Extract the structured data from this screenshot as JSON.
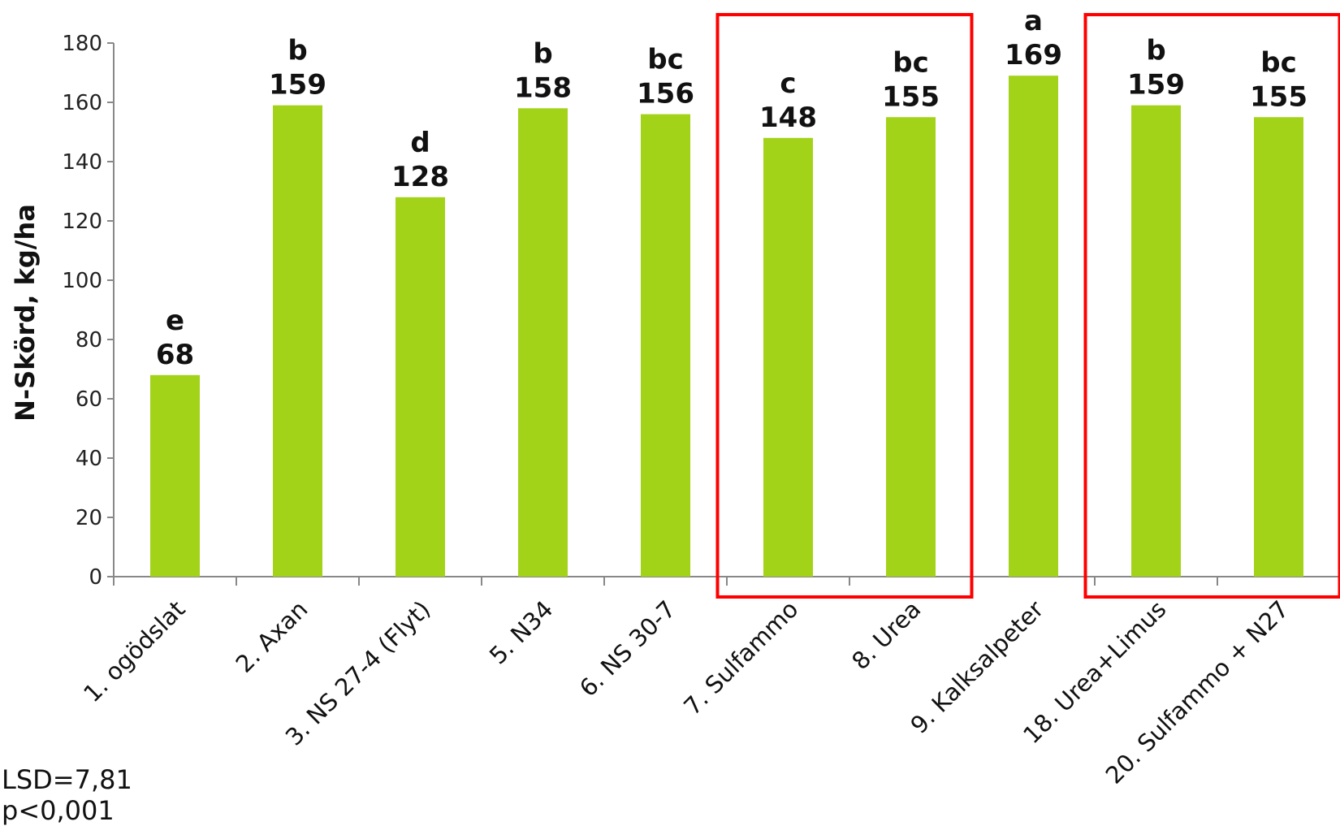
{
  "chart_data": {
    "type": "bar",
    "ylabel": "N-Skörd, kg/ha",
    "xlabel": "",
    "ylim": [
      0,
      180
    ],
    "yticks": [
      0,
      20,
      40,
      60,
      80,
      100,
      120,
      140,
      160,
      180
    ],
    "grid": false,
    "categories": [
      "1. ogödslat",
      "2. Axan",
      "3. NS 27-4 (Flyt)",
      "5. N34",
      "6. NS 30-7",
      "7. Sulfammo",
      "8. Urea",
      "9. Kalksalpeter",
      "18. Urea+Limus",
      "20. Sulfammo + N27"
    ],
    "values": [
      68,
      159,
      128,
      158,
      156,
      148,
      155,
      169,
      159,
      155
    ],
    "letters": [
      "e",
      "b",
      "d",
      "b",
      "bc",
      "c",
      "bc",
      "a",
      "b",
      "bc"
    ],
    "bar_color": "#a3d319",
    "highlight_color": "#ff0000",
    "highlight_groups": [
      [
        5,
        6
      ],
      [
        8,
        9
      ]
    ]
  },
  "notes": {
    "lsd": "LSD=7,81",
    "p": "p<0,001"
  }
}
